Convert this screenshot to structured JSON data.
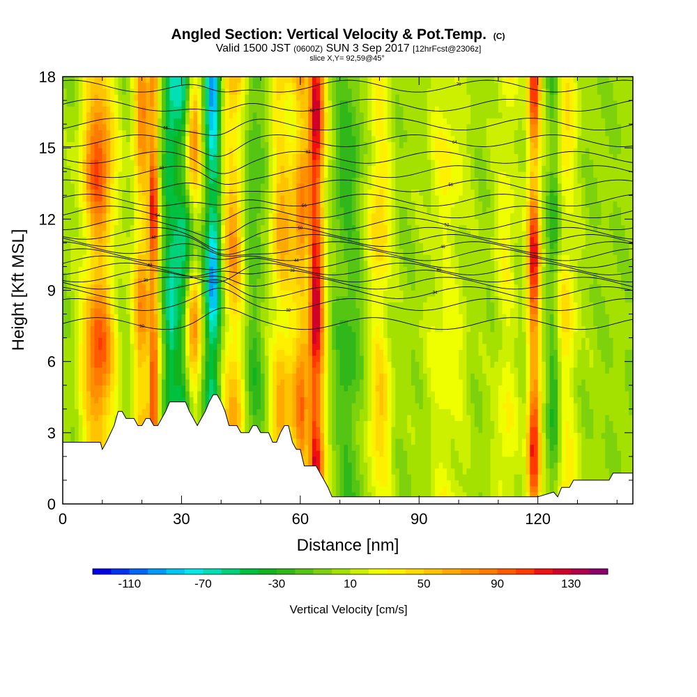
{
  "chart_data": {
    "type": "heatmap",
    "title_main": "Angled Section: Vertical Velocity & Pot.Temp.",
    "title_mark": "(C)",
    "subtitle_pre": "Valid 1500 JST",
    "subtitle_zulu": "(0600Z)",
    "subtitle_date": "SUN 3 Sep 2017",
    "subtitle_fcst": "[12hrFcst@2306z]",
    "slice_label": "slice X,Y= 92,59@45°",
    "xlabel": "Distance [nm]",
    "ylabel": "Height [Kft MSL]",
    "xlim": [
      0,
      144
    ],
    "ylim": [
      0,
      18
    ],
    "x_ticks": [
      "0",
      "30",
      "60",
      "90",
      "120"
    ],
    "x_tick_values": [
      0,
      30,
      60,
      90,
      120
    ],
    "y_ticks": [
      "0",
      "3",
      "6",
      "9",
      "12",
      "15",
      "18"
    ],
    "y_tick_values": [
      0,
      3,
      6,
      9,
      12,
      15,
      18
    ],
    "colorbar": {
      "label": "Vertical Velocity [cm/s]",
      "tick_labels": [
        "-110",
        "-70",
        "-30",
        "10",
        "50",
        "90",
        "130"
      ],
      "tick_values": [
        -110,
        -70,
        -30,
        10,
        50,
        90,
        130
      ],
      "range": [
        -130,
        150
      ],
      "step": 10,
      "colors": [
        "#0000e6",
        "#0033f0",
        "#0066f5",
        "#0099f5",
        "#00c6f2",
        "#00eaea",
        "#00e0b4",
        "#00d27a",
        "#00c040",
        "#11b41e",
        "#30b81a",
        "#55c514",
        "#7ed20d",
        "#a4e000",
        "#ccf000",
        "#f0ff00",
        "#fff000",
        "#ffdc00",
        "#ffc400",
        "#ffaa00",
        "#ff9000",
        "#ff7a00",
        "#ff5a00",
        "#ff3a00",
        "#f01010",
        "#d00028",
        "#b0004a",
        "#8c006a"
      ]
    },
    "columns": [
      {
        "x": 9,
        "w": 4,
        "v": 100
      },
      {
        "x": 20,
        "w": 2.2,
        "v": 80
      },
      {
        "x": 23,
        "w": 1.2,
        "v": 110
      },
      {
        "x": 27,
        "w": 1.5,
        "v": -40
      },
      {
        "x": 31,
        "w": 4,
        "v": -80
      },
      {
        "x": 33,
        "w": 2.2,
        "v": 110
      },
      {
        "x": 38,
        "w": 2,
        "v": -100
      },
      {
        "x": 43,
        "w": 3,
        "v": 70
      },
      {
        "x": 48,
        "w": 2.5,
        "v": -30
      },
      {
        "x": 55,
        "w": 2.5,
        "v": 60
      },
      {
        "x": 61,
        "w": 3.5,
        "v": 90
      },
      {
        "x": 64,
        "w": 2.2,
        "v": 110
      },
      {
        "x": 62,
        "w": 1.2,
        "v": -50
      },
      {
        "x": 72,
        "w": 3.5,
        "v": -30
      },
      {
        "x": 80,
        "w": 3,
        "v": 50
      },
      {
        "x": 97,
        "w": 5,
        "v": 30
      },
      {
        "x": 112,
        "w": 3,
        "v": 30
      },
      {
        "x": 119,
        "w": 1.6,
        "v": 120
      },
      {
        "x": 124,
        "w": 1.6,
        "v": -40
      },
      {
        "x": 127,
        "w": 3,
        "v": 40
      }
    ],
    "terrain": {
      "x": [
        0,
        9.5,
        10,
        11,
        13,
        14,
        15,
        16,
        17,
        18,
        19,
        20,
        21,
        22,
        23,
        24,
        25,
        26,
        27,
        28,
        29,
        30,
        31,
        32,
        33,
        34,
        35,
        36,
        37,
        38,
        39,
        40,
        41,
        42,
        43,
        44,
        45,
        46,
        47,
        48,
        49,
        50,
        51,
        52,
        53,
        54,
        55,
        56,
        57,
        58,
        59,
        60,
        61,
        62,
        63,
        64,
        65,
        66,
        67,
        68,
        69,
        70,
        80,
        90,
        100,
        105,
        110,
        115,
        120,
        124,
        125,
        126,
        128,
        129,
        130,
        135,
        138,
        139,
        144
      ],
      "h": [
        2.6,
        2.6,
        2.3,
        2.6,
        3.3,
        3.9,
        3.9,
        3.6,
        3.6,
        3.6,
        3.3,
        3.3,
        3.6,
        3.6,
        3.3,
        3.3,
        3.6,
        3.9,
        4.3,
        4.3,
        4.3,
        4.3,
        4.3,
        3.9,
        3.6,
        3.3,
        3.6,
        3.9,
        4.3,
        4.6,
        4.6,
        4.3,
        3.9,
        3.3,
        3.3,
        3.3,
        3.0,
        3.0,
        3.0,
        3.3,
        3.3,
        3.0,
        3.0,
        3.0,
        2.6,
        2.6,
        3.0,
        3.3,
        3.3,
        2.6,
        2.3,
        2.3,
        1.6,
        1.6,
        1.6,
        1.6,
        1.3,
        1.0,
        0.7,
        0.3,
        0.3,
        0.3,
        0.3,
        0.3,
        0.3,
        0.3,
        0.3,
        0.3,
        0.3,
        0.5,
        0.3,
        0.7,
        0.7,
        1.0,
        1.0,
        1.0,
        1.0,
        1.3,
        1.3
      ]
    },
    "isentropes": [
      {
        "label": "30",
        "base": 7.6
      },
      {
        "label": "32",
        "base": 8.4
      },
      {
        "label": "34",
        "base": 8.9
      },
      {
        "label": "36",
        "base": 9.3
      },
      {
        "label": "38",
        "base": 9.6
      },
      {
        "label": "40",
        "base": 9.9
      },
      {
        "label": "42",
        "base": 10.2
      },
      {
        "label": "44",
        "base": 10.5
      },
      {
        "label": "46",
        "base": 10.8
      },
      {
        "label": "48",
        "base": 11.1
      },
      {
        "label": "50",
        "base": 11.4
      },
      {
        "label": "52",
        "base": 11.8
      },
      {
        "label": "54",
        "base": 12.3
      },
      {
        "label": "56",
        "base": 12.8
      },
      {
        "label": "58",
        "base": 13.4
      },
      {
        "label": "60",
        "base": 14.0
      },
      {
        "label": "62",
        "base": 14.6
      },
      {
        "label": "64",
        "base": 15.3
      },
      {
        "label": "66",
        "base": 16.0
      },
      {
        "label": "68",
        "base": 16.8
      },
      {
        "label": "70",
        "base": 17.6
      }
    ]
  }
}
